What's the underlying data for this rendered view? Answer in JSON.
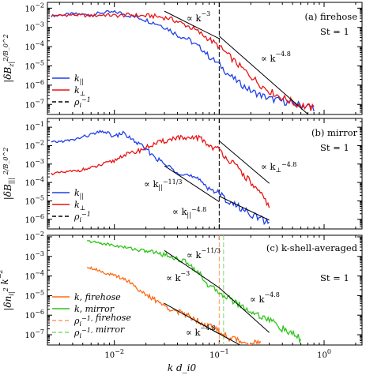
{
  "chart_data": [
    {
      "type": "line",
      "panel_tag": "(a)",
      "title": "(a) firehose",
      "subtitle": "St = 1",
      "ylabel": "|δB_z|^2/B_0^2",
      "xlabel": "",
      "xscale": "log",
      "yscale": "log",
      "xlim": [
        0.0023,
        2.3
      ],
      "ylim": [
        3e-08,
        0.02
      ],
      "yticks": [
        0.01,
        0.001,
        0.0001,
        1e-05,
        1e-06,
        1e-07
      ],
      "ytick_labels": [
        "10^-2",
        "10^-3",
        "10^-4",
        "10^-5",
        "10^-6",
        "10^-7"
      ],
      "legend_position": "lower-left",
      "series": [
        {
          "name": "k_||",
          "color": "#1f3fe8",
          "x": [
            0.0025,
            0.004,
            0.006,
            0.008,
            0.011,
            0.014,
            0.018,
            0.022,
            0.027,
            0.033,
            0.04,
            0.05,
            0.06,
            0.07,
            0.08,
            0.1,
            0.12,
            0.15,
            0.2,
            0.25,
            0.3,
            0.4,
            0.5,
            0.6,
            0.8
          ],
          "y": [
            0.004,
            0.005,
            0.0045,
            0.006,
            0.006,
            0.004,
            0.003,
            0.002,
            0.0014,
            0.0008,
            0.0004,
            0.00025,
            0.00012,
            7e-05,
            3e-05,
            1.2e-05,
            4e-06,
            1.5e-06,
            5e-07,
            3e-07,
            2e-07,
            1.5e-07,
            1.1e-07,
            9e-08,
            7e-08
          ]
        },
        {
          "name": "k_⊥",
          "color": "#e81414",
          "x": [
            0.0025,
            0.004,
            0.006,
            0.008,
            0.011,
            0.014,
            0.018,
            0.022,
            0.027,
            0.033,
            0.04,
            0.05,
            0.06,
            0.07,
            0.08,
            0.1,
            0.12,
            0.15,
            0.2,
            0.25,
            0.3,
            0.4,
            0.5,
            0.6,
            0.8
          ],
          "y": [
            0.004,
            0.0045,
            0.004,
            0.0045,
            0.004,
            0.0045,
            0.004,
            0.004,
            0.0035,
            0.003,
            0.002,
            0.0012,
            0.0007,
            0.0004,
            0.00025,
            0.0001,
            4e-05,
            1.2e-05,
            3e-06,
            1e-06,
            5e-07,
            2.2e-07,
            1.3e-07,
            9e-08,
            6e-08
          ]
        }
      ],
      "ref_lines": [
        {
          "label": "∝ k^-3",
          "x": [
            0.03,
            0.1
          ],
          "y": [
            0.007,
            0.00026
          ]
        },
        {
          "label": "∝ k^-4.8",
          "x": [
            0.1,
            0.7
          ],
          "y": [
            0.00035,
            3.1e-08
          ]
        }
      ],
      "vlines": [
        {
          "name": "ρ_i^-1",
          "x": 0.1,
          "color": "#000000",
          "style": "dashed"
        }
      ]
    },
    {
      "type": "line",
      "panel_tag": "(b)",
      "title": "(b) mirror",
      "subtitle": "St = 1",
      "ylabel": "|δB_||| ^2/B_0^2",
      "xlabel": "",
      "xscale": "log",
      "yscale": "log",
      "xlim": [
        0.0023,
        2.3
      ],
      "ylim": [
        3e-07,
        0.3
      ],
      "yticks": [
        0.1,
        0.01,
        0.001,
        0.0001,
        1e-05,
        1e-06
      ],
      "ytick_labels": [
        "10^-1",
        "10^-2",
        "10^-3",
        "10^-4",
        "10^-5",
        "10^-6"
      ],
      "legend_position": "lower-left",
      "series": [
        {
          "name": "k_||",
          "color": "#1f3fe8",
          "x": [
            0.0025,
            0.004,
            0.006,
            0.008,
            0.01,
            0.012,
            0.015,
            0.018,
            0.022,
            0.027,
            0.033,
            0.04,
            0.05,
            0.06,
            0.07,
            0.08,
            0.1,
            0.12,
            0.15,
            0.2,
            0.25,
            0.3
          ],
          "y": [
            0.015,
            0.02,
            0.04,
            0.06,
            0.03,
            0.05,
            0.02,
            0.01,
            0.004,
            0.0015,
            0.0007,
            0.0004,
            0.00025,
            0.00015,
            0.0001,
            5e-05,
            2.5e-05,
            1e-05,
            5e-06,
            2e-06,
            1e-06,
            6e-07
          ]
        },
        {
          "name": "k_⊥",
          "color": "#e81414",
          "x": [
            0.0025,
            0.004,
            0.006,
            0.008,
            0.01,
            0.012,
            0.015,
            0.018,
            0.022,
            0.027,
            0.033,
            0.04,
            0.05,
            0.06,
            0.07,
            0.08,
            0.1,
            0.12,
            0.15,
            0.2,
            0.25,
            0.3
          ],
          "y": [
            0.0003,
            0.0004,
            0.0006,
            0.001,
            0.0015,
            0.003,
            0.004,
            0.006,
            0.01,
            0.015,
            0.02,
            0.03,
            0.02,
            0.03,
            0.02,
            0.01,
            0.006,
            0.002,
            0.0006,
            0.0001,
            2e-05,
            6e-06
          ]
        }
      ],
      "ref_lines": [
        {
          "label": "∝ k_||^-11/3",
          "x": [
            0.03,
            0.1
          ],
          "y": [
            0.0008,
            9e-06
          ]
        },
        {
          "label": "∝ k_||^-4.8",
          "x": [
            0.1,
            0.3
          ],
          "y": [
            1.8e-05,
            9e-07
          ]
        },
        {
          "label": "∝ k_⊥^-4.8",
          "x": [
            0.1,
            0.3
          ],
          "y": [
            0.018,
            9e-05
          ]
        }
      ],
      "vlines": [
        {
          "name": "ρ_i^-1",
          "x": 0.1,
          "color": "#000000",
          "style": "dashed"
        }
      ]
    },
    {
      "type": "line",
      "panel_tag": "(c)",
      "title": "(c) k-shell-averaged",
      "subtitle": "St = 1",
      "ylabel": "|δn_i|^2 k^-2",
      "xlabel": "k d_i0",
      "xscale": "log",
      "yscale": "log",
      "xlim": [
        0.0023,
        2.3
      ],
      "ylim": [
        3e-08,
        0.012
      ],
      "yticks": [
        0.01,
        0.001,
        0.0001,
        1e-05,
        1e-06,
        1e-07
      ],
      "ytick_labels": [
        "10^-2",
        "10^-3",
        "10^-4",
        "10^-5",
        "10^-6",
        "10^-7"
      ],
      "xticks": [
        0.01,
        0.1,
        1
      ],
      "xtick_labels": [
        "10^-2",
        "10^-1",
        "10^0"
      ],
      "legend_position": "lower-left",
      "series": [
        {
          "name": "k, firehose",
          "color": "#ff6a14",
          "x": [
            0.0055,
            0.007,
            0.009,
            0.012,
            0.015,
            0.018,
            0.022,
            0.026,
            0.03,
            0.035,
            0.04,
            0.05,
            0.06,
            0.07,
            0.08,
            0.1,
            0.12,
            0.15,
            0.2,
            0.25
          ],
          "y": [
            0.0003,
            0.0002,
            0.00012,
            8e-05,
            4e-05,
            1.5e-05,
            8e-06,
            5e-06,
            3e-06,
            2e-06,
            1.5e-06,
            1e-06,
            6e-07,
            4e-07,
            3e-07,
            1.5e-07,
            8e-08,
            5e-08,
            4e-08,
            3.5e-08
          ]
        },
        {
          "name": "k, mirror",
          "color": "#2ec41a",
          "x": [
            0.0055,
            0.007,
            0.009,
            0.012,
            0.015,
            0.018,
            0.022,
            0.026,
            0.03,
            0.035,
            0.04,
            0.05,
            0.06,
            0.07,
            0.08,
            0.1,
            0.12,
            0.15,
            0.2,
            0.3,
            0.4,
            0.5,
            0.6
          ],
          "y": [
            0.006,
            0.005,
            0.004,
            0.003,
            0.0025,
            0.002,
            0.0018,
            0.0015,
            0.0012,
            0.001,
            0.0007,
            0.0005,
            0.0002,
            8e-05,
            3e-05,
            1.5e-05,
            8e-06,
            4e-06,
            1.5e-06,
            6e-07,
            2e-07,
            1e-07,
            6e-08
          ]
        }
      ],
      "ref_lines": [
        {
          "label": "∝ k^-11/3",
          "x": [
            0.03,
            0.1
          ],
          "y": [
            0.002,
            2.5e-05
          ]
        },
        {
          "label": "∝ k^-3",
          "x": [
            0.03,
            0.1
          ],
          "y": [
            4e-06,
            1.1e-07
          ]
        },
        {
          "label": "∝ k^-4.8",
          "x": [
            0.1,
            0.3
          ],
          "y": [
            2.5e-05,
            1.3e-07
          ]
        },
        {
          "label": "∝ k^-4.8",
          "x": [
            0.06,
            0.2
          ],
          "y": [
            5e-07,
            1.5e-08
          ]
        }
      ],
      "vlines": [
        {
          "name": "ρ_i^-1, firehose",
          "x": 0.1,
          "color": "#ff9b5a",
          "style": "dashed"
        },
        {
          "name": "ρ_i^-1, mirror",
          "x": 0.11,
          "color": "#7ddc6a",
          "style": "dashed"
        }
      ]
    }
  ]
}
